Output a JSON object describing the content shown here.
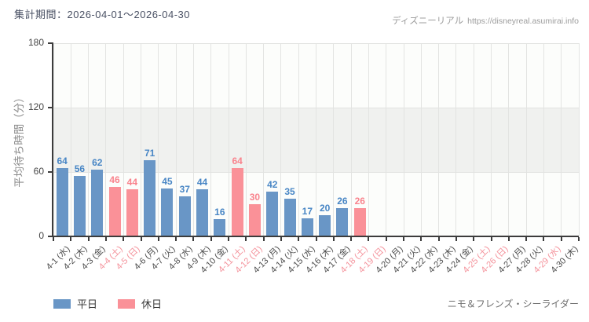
{
  "header": {
    "period_label": "集計期間：2026-04-01～2026-04-30"
  },
  "watermark": {
    "site_name": "ディズニーリアル",
    "site_url": "https://disneyreal.asumirai.info"
  },
  "footer": {
    "attraction_name": "ニモ＆フレンズ・シーライダー"
  },
  "legend": [
    {
      "label": "平日",
      "type": "weekday",
      "color": "#6996c6"
    },
    {
      "label": "休日",
      "type": "holiday",
      "color": "#fa9198"
    }
  ],
  "chart_data": {
    "type": "bar",
    "title": "",
    "xlabel": "",
    "ylabel": "平均待ち時間（分）",
    "ylim": [
      0,
      180
    ],
    "yticks": [
      0,
      60,
      120,
      180
    ],
    "grid": "vertical-lines-with-alternating-horizontal-bands",
    "legend_position": "bottom-left",
    "categories": [
      "4-1 (水)",
      "4-2 (木)",
      "4-3 (金)",
      "4-4 (土)",
      "4-5 (日)",
      "4-6 (月)",
      "4-7 (火)",
      "4-8 (水)",
      "4-9 (木)",
      "4-10 (金)",
      "4-11 (土)",
      "4-12 (日)",
      "4-13 (月)",
      "4-14 (火)",
      "4-15 (水)",
      "4-16 (木)",
      "4-17 (金)",
      "4-18 (土)",
      "4-19 (日)",
      "4-20 (月)",
      "4-21 (火)",
      "4-22 (水)",
      "4-23 (木)",
      "4-24 (金)",
      "4-25 (土)",
      "4-26 (日)",
      "4-27 (月)",
      "4-28 (火)",
      "4-29 (水)",
      "4-30 (木)"
    ],
    "values": [
      64,
      56,
      62,
      46,
      44,
      71,
      45,
      37,
      44,
      16,
      64,
      30,
      42,
      35,
      17,
      20,
      26,
      26,
      null,
      null,
      null,
      null,
      null,
      null,
      null,
      null,
      null,
      null,
      null,
      null
    ],
    "day_types": [
      "weekday",
      "weekday",
      "weekday",
      "holiday",
      "holiday",
      "weekday",
      "weekday",
      "weekday",
      "weekday",
      "weekday",
      "holiday",
      "holiday",
      "weekday",
      "weekday",
      "weekday",
      "weekday",
      "weekday",
      "holiday",
      "holiday",
      "weekday",
      "weekday",
      "weekday",
      "weekday",
      "weekday",
      "holiday",
      "holiday",
      "weekday",
      "weekday",
      "holiday",
      "weekday"
    ],
    "colors": {
      "weekday_bar": "#6996c6",
      "holiday_bar": "#fa9198",
      "weekday_value_label": "#4886c5",
      "holiday_value_label": "#f9838d",
      "weekday_tick_label": "#4d4d4d",
      "holiday_tick_label": "#f4929b"
    }
  }
}
